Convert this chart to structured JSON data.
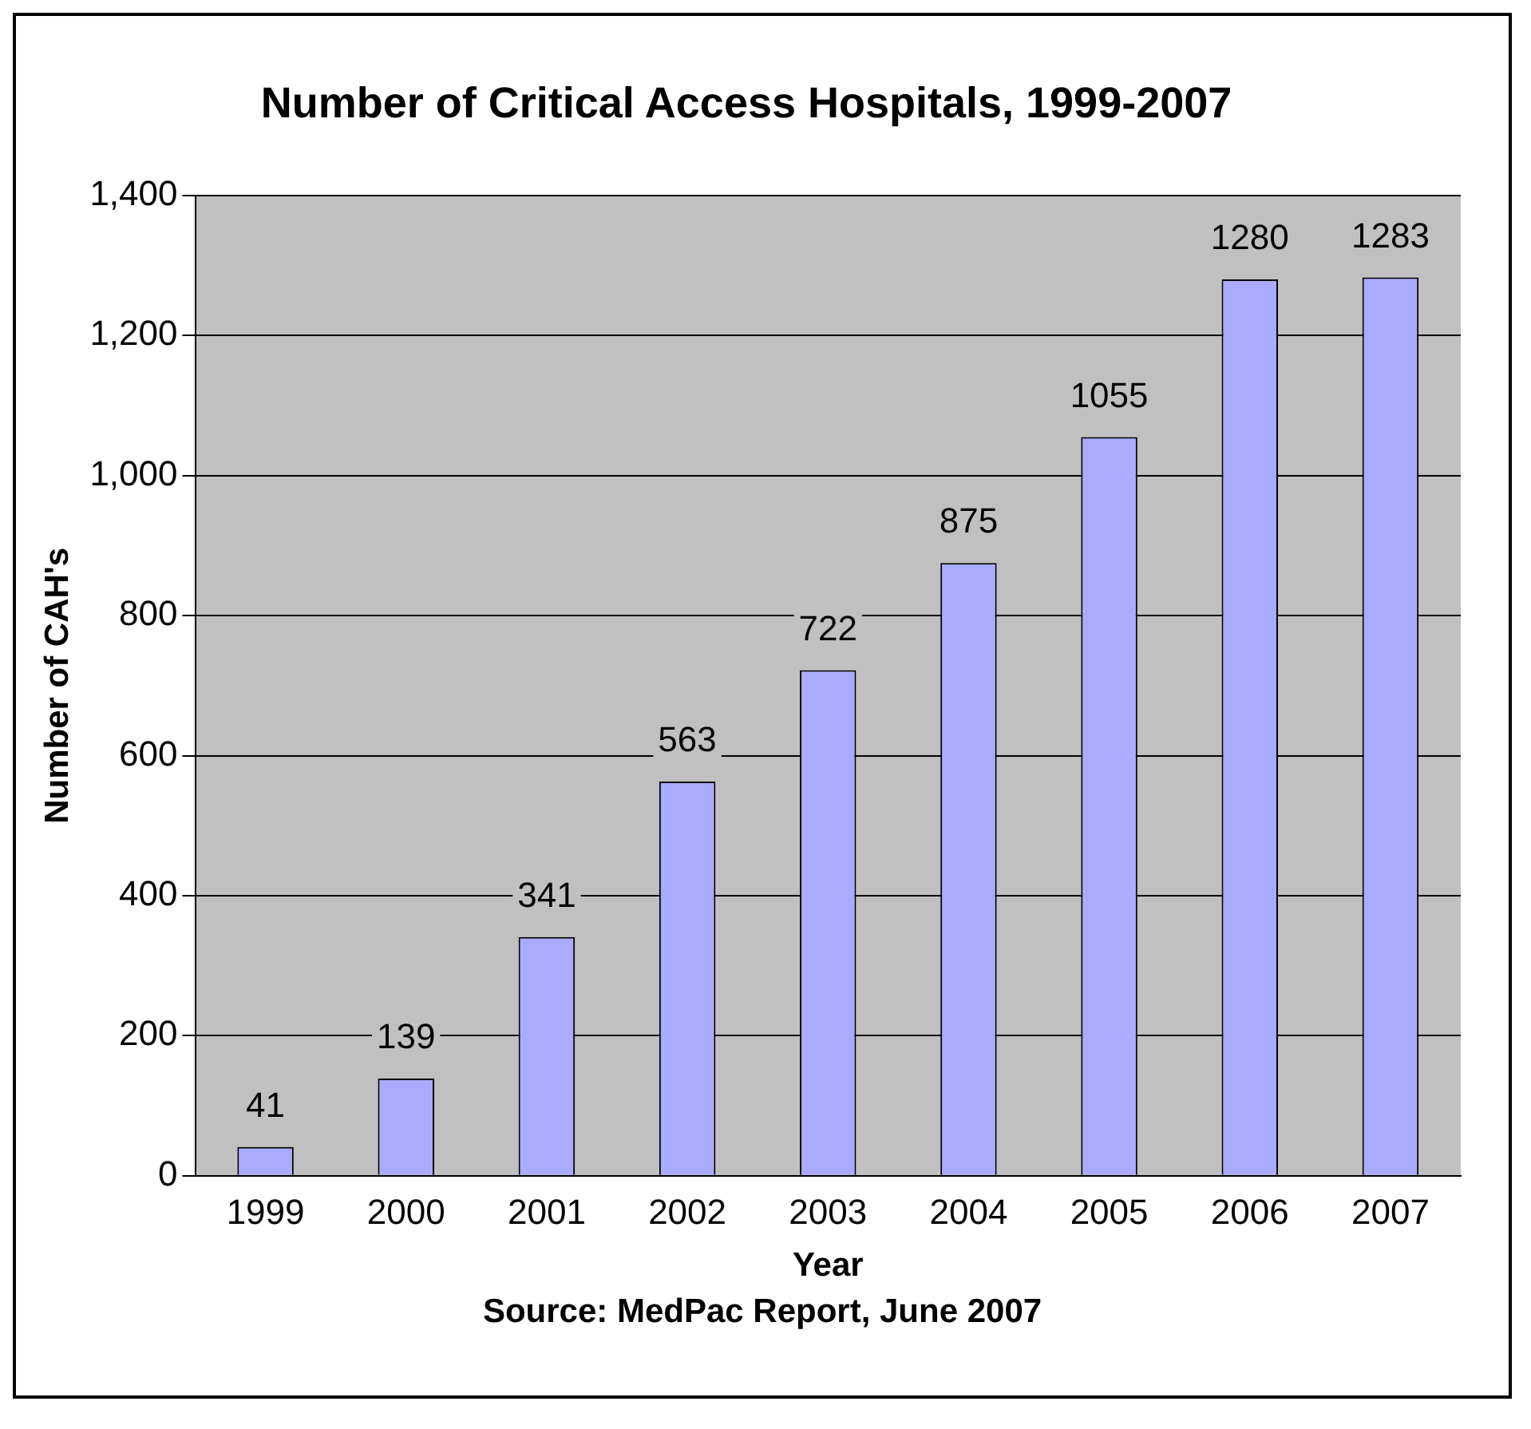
{
  "chart_data": {
    "type": "bar",
    "title": "Number of Critical Access Hospitals, 1999-2007",
    "xlabel": "Year",
    "ylabel": "Number of CAH's",
    "annotations": [
      "Source: MedPac Report, June 2007"
    ],
    "categories": [
      "1999",
      "2000",
      "2001",
      "2002",
      "2003",
      "2004",
      "2005",
      "2006",
      "2007"
    ],
    "values": [
      41,
      139,
      341,
      563,
      722,
      875,
      1055,
      1280,
      1283
    ],
    "color": "#aaaaff",
    "ylim": [
      0,
      1400
    ],
    "yticks": [
      {
        "value": 0,
        "label": "0"
      },
      {
        "value": 200,
        "label": "200"
      },
      {
        "value": 400,
        "label": "400"
      },
      {
        "value": 600,
        "label": "600"
      },
      {
        "value": 800,
        "label": "800"
      },
      {
        "value": 1000,
        "label": "1,000"
      },
      {
        "value": 1200,
        "label": "1,200"
      },
      {
        "value": 1400,
        "label": "1,400"
      }
    ],
    "grid": "y",
    "data_labels": true,
    "legend": false
  }
}
